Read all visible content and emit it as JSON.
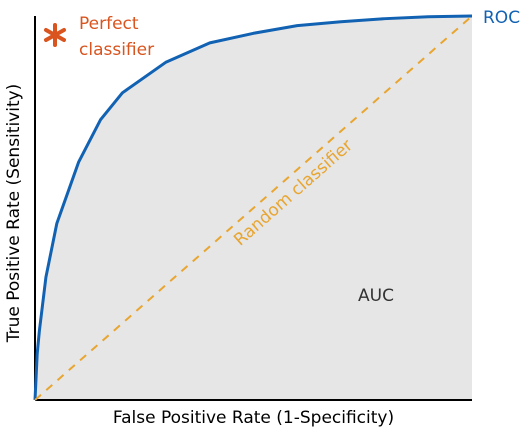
{
  "chart_data": {
    "type": "line",
    "x_label": "False Positive Rate (1-Specificity)",
    "y_label": "True Positive Rate (Sensitivity)",
    "xlim": [
      0,
      1
    ],
    "ylim": [
      0,
      1
    ],
    "area_color": "#e6e6e6",
    "series": [
      {
        "name": "ROC",
        "color": "#1262b3",
        "x": [
          0,
          0.005,
          0.01,
          0.025,
          0.05,
          0.1,
          0.15,
          0.2,
          0.3,
          0.4,
          0.5,
          0.6,
          0.7,
          0.8,
          0.9,
          1
        ],
        "values": [
          0,
          0.12,
          0.18,
          0.32,
          0.46,
          0.62,
          0.73,
          0.8,
          0.88,
          0.93,
          0.955,
          0.975,
          0.985,
          0.993,
          0.998,
          1
        ]
      },
      {
        "name": "Random classifier",
        "color": "#e8a530",
        "dashed": true,
        "x": [
          0,
          1
        ],
        "values": [
          0,
          1
        ]
      }
    ],
    "annotations": {
      "auc": "AUC",
      "perfect": [
        "Perfect",
        "classifier"
      ],
      "perfect_color": "#d9541e"
    }
  }
}
